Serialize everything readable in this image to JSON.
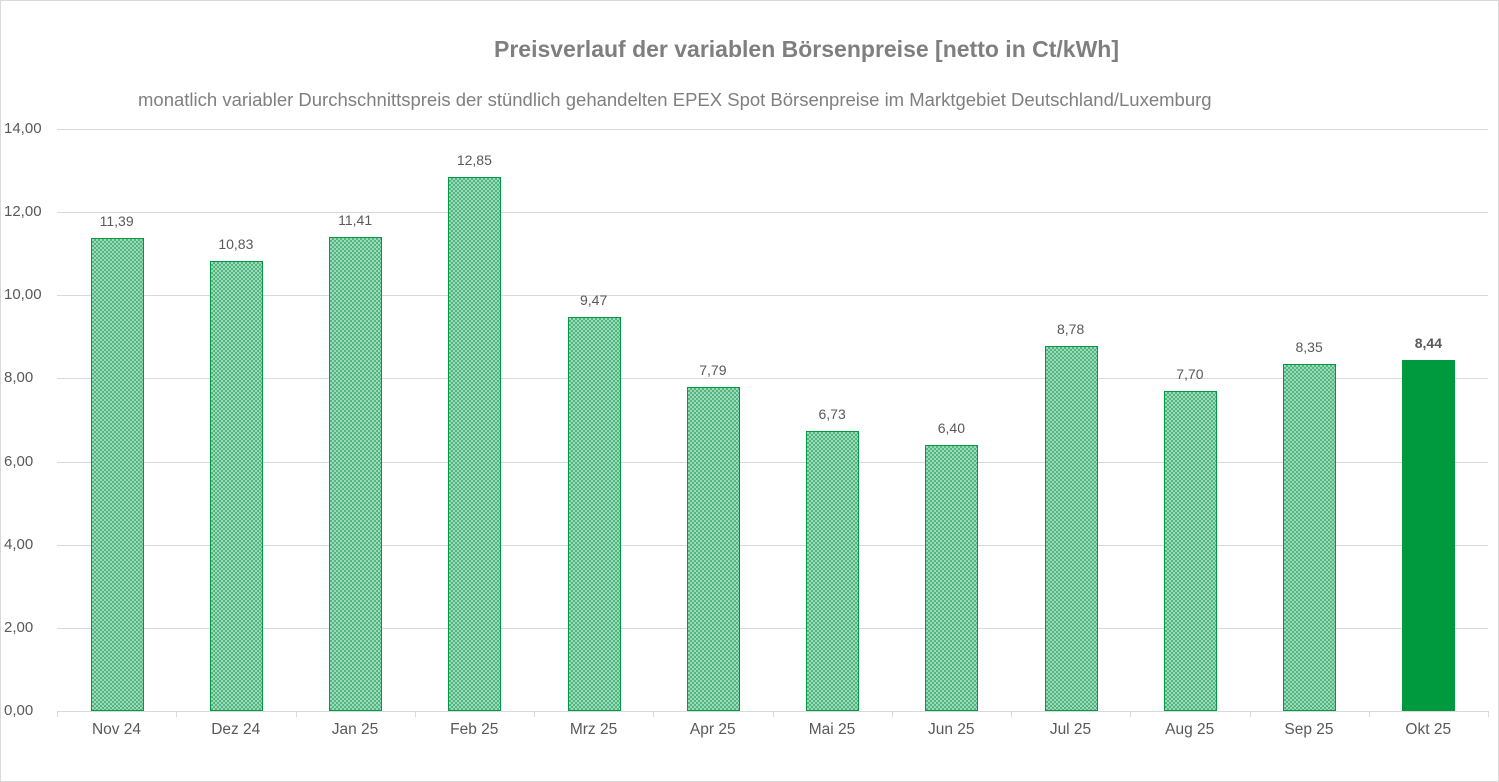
{
  "chart_data": {
    "type": "bar",
    "title": "Preisverlauf der variablen Börsenpreise [netto in Ct/kWh]",
    "subtitle": "monatlich variabler Durchschnittspreis der stündlich gehandelten EPEX Spot Börsenpreise im Marktgebiet Deutschland/Luxemburg",
    "xlabel": "",
    "ylabel": "",
    "ylim": [
      0,
      14
    ],
    "yticks": [
      "0,00",
      "2,00",
      "4,00",
      "6,00",
      "8,00",
      "10,00",
      "12,00",
      "14,00"
    ],
    "grid": true,
    "legend": null,
    "categories": [
      "Nov 24",
      "Dez 24",
      "Jan 25",
      "Feb 25",
      "Mrz 25",
      "Apr 25",
      "Mai 25",
      "Jun 25",
      "Jul 25",
      "Aug 25",
      "Sep 25",
      "Okt 25"
    ],
    "values": [
      11.39,
      10.83,
      11.41,
      12.85,
      9.47,
      7.79,
      6.73,
      6.4,
      8.78,
      7.7,
      8.35,
      8.44
    ],
    "value_labels": [
      "11,39",
      "10,83",
      "11,41",
      "12,85",
      "9,47",
      "7,79",
      "6,73",
      "6,40",
      "8,78",
      "7,70",
      "8,35",
      "8,44"
    ],
    "highlight_index": 11,
    "colors": {
      "bar_pattern": "#4fb880",
      "bar_border": "#009a44",
      "highlight": "#009a3e",
      "text": "#7f7f7f",
      "grid": "#d9d9d9"
    }
  }
}
